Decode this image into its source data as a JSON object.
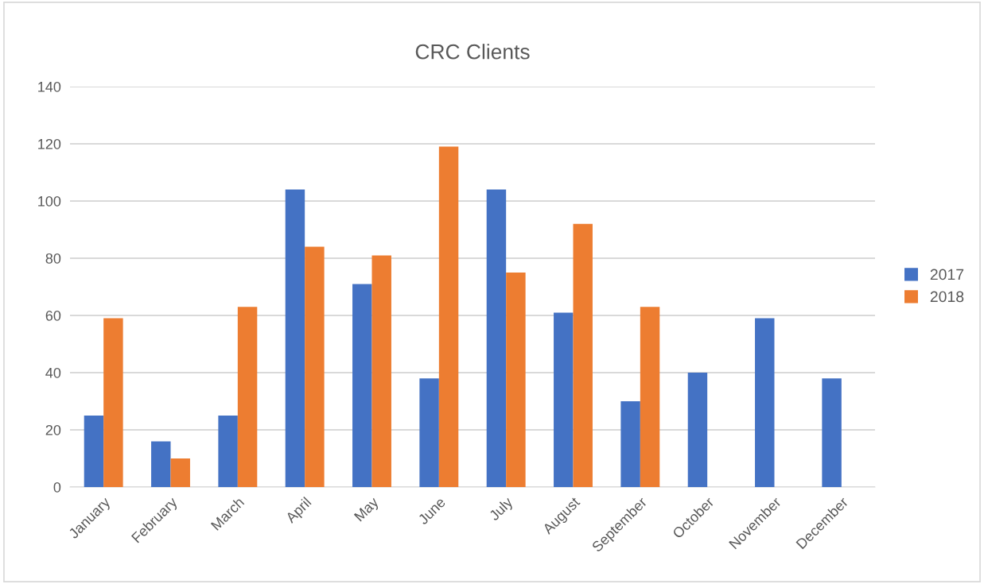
{
  "chart_data": {
    "type": "bar",
    "title": "CRC Clients",
    "categories": [
      "January",
      "February",
      "March",
      "April",
      "May",
      "June",
      "July",
      "August",
      "September",
      "October",
      "November",
      "December"
    ],
    "series": [
      {
        "name": "2017",
        "color": "#4472c4",
        "values": [
          25,
          16,
          25,
          104,
          71,
          38,
          104,
          61,
          30,
          40,
          59,
          38
        ]
      },
      {
        "name": "2018",
        "color": "#ed7d31",
        "values": [
          59,
          10,
          63,
          84,
          81,
          119,
          75,
          92,
          63,
          null,
          null,
          null
        ]
      }
    ],
    "ylim": [
      0,
      140
    ],
    "yticks": [
      0,
      20,
      40,
      60,
      80,
      100,
      120,
      140
    ],
    "grid": "y",
    "legend": "right"
  }
}
